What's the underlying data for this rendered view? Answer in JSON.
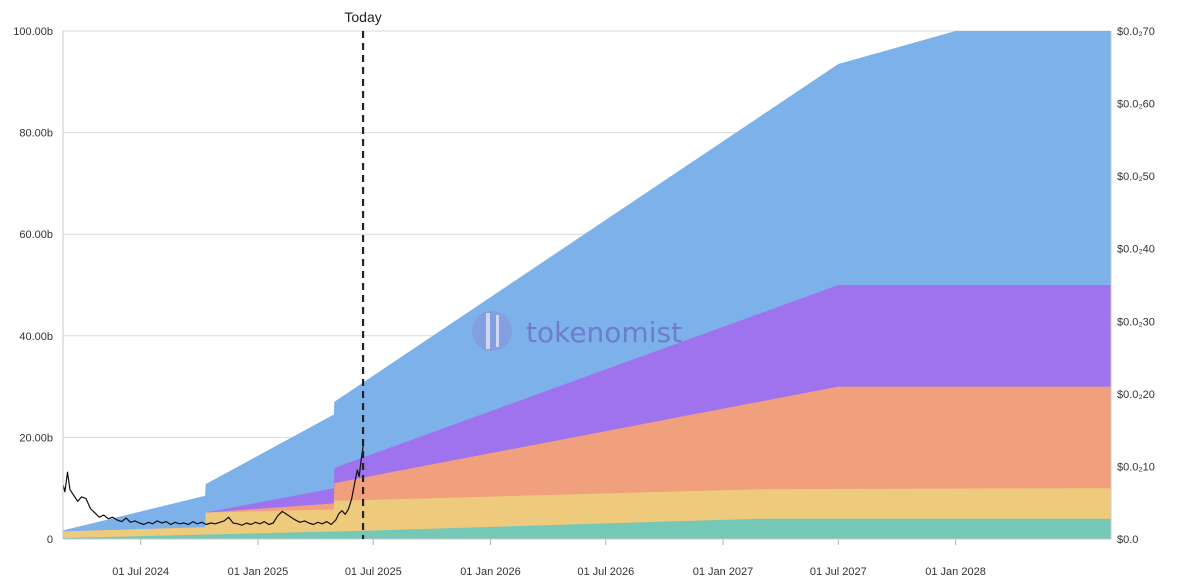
{
  "chart_data": {
    "type": "area",
    "x_axis": {
      "type": "date",
      "range": [
        "2024-03-01",
        "2028-09-01"
      ],
      "ticks": [
        {
          "date": "2024-07-01",
          "label": "01 Jul 2024"
        },
        {
          "date": "2025-01-01",
          "label": "01 Jan 2025"
        },
        {
          "date": "2025-07-01",
          "label": "01 Jul 2025"
        },
        {
          "date": "2026-01-01",
          "label": "01 Jan 2026"
        },
        {
          "date": "2026-07-01",
          "label": "01 Jul 2026"
        },
        {
          "date": "2027-01-01",
          "label": "01 Jan 2027"
        },
        {
          "date": "2027-07-01",
          "label": "01 Jul 2027"
        },
        {
          "date": "2028-01-01",
          "label": "01 Jan 2028"
        }
      ]
    },
    "y_axis_left": {
      "range": [
        0,
        100
      ],
      "ticks": [
        {
          "value": 0,
          "label": "0"
        },
        {
          "value": 20,
          "label": "20.00b"
        },
        {
          "value": 40,
          "label": "40.00b"
        },
        {
          "value": 60,
          "label": "60.00b"
        },
        {
          "value": 80,
          "label": "80.00b"
        },
        {
          "value": 100,
          "label": "100.00b"
        }
      ]
    },
    "y_axis_right": {
      "ticks": [
        {
          "value": 0,
          "label": "$0.0"
        },
        {
          "value": 1e-06,
          "label": "$0.0₂10"
        },
        {
          "value": 2e-06,
          "label": "$0.0₂20"
        },
        {
          "value": 3e-06,
          "label": "$0.0₂30"
        },
        {
          "value": 4e-06,
          "label": "$0.0₂40"
        },
        {
          "value": 5e-06,
          "label": "$0.0₂50"
        },
        {
          "value": 6e-06,
          "label": "$0.0₂60"
        },
        {
          "value": 7e-06,
          "label": "$0.0₂70"
        }
      ]
    },
    "today": {
      "date": "2025-06-15",
      "label": "Today"
    },
    "grid": true,
    "watermark": "tokenomist",
    "series": [
      {
        "color": "#76c8b6",
        "points": [
          [
            "2024-03-01",
            0.2
          ],
          [
            "2025-06-10",
            1.6
          ],
          [
            "2027-03-01",
            4.0
          ],
          [
            "2028-08-01",
            4.0
          ]
        ]
      },
      {
        "color": "#eecb7c",
        "points": [
          [
            "2024-03-01",
            1.5
          ],
          [
            "2024-10-10",
            2.3
          ],
          [
            "2024-10-11",
            5.2
          ],
          [
            "2025-04-30",
            5.8
          ],
          [
            "2025-05-01",
            7.5
          ],
          [
            "2027-03-01",
            9.8
          ],
          [
            "2028-08-01",
            10.0
          ]
        ]
      },
      {
        "color": "#f0a07d",
        "points": [
          [
            "2024-03-01",
            1.5
          ],
          [
            "2024-10-10",
            2.3
          ],
          [
            "2024-10-11",
            5.2
          ],
          [
            "2025-04-30",
            7.0
          ],
          [
            "2025-05-01",
            11.0
          ],
          [
            "2027-07-01",
            30.0
          ],
          [
            "2028-08-01",
            30.0
          ]
        ]
      },
      {
        "color": "#9f72ee",
        "points": [
          [
            "2024-03-01",
            1.5
          ],
          [
            "2024-10-10",
            2.3
          ],
          [
            "2024-10-11",
            5.2
          ],
          [
            "2025-04-30",
            10.0
          ],
          [
            "2025-05-01",
            14.0
          ],
          [
            "2027-07-01",
            50.0
          ],
          [
            "2028-08-01",
            50.0
          ]
        ]
      },
      {
        "color": "#7db1ea",
        "points": [
          [
            "2024-03-01",
            1.7
          ],
          [
            "2024-10-10",
            8.5
          ],
          [
            "2024-10-11",
            10.8
          ],
          [
            "2025-04-30",
            24.5
          ],
          [
            "2025-05-01",
            27.0
          ],
          [
            "2027-07-01",
            93.5
          ],
          [
            "2028-01-01",
            100.0
          ],
          [
            "2028-08-01",
            100.0
          ]
        ]
      }
    ],
    "price_series": {
      "color": "#111111",
      "points": [
        [
          "2024-03-01",
          7.5e-07
        ],
        [
          "2024-03-04",
          6.5e-07
        ],
        [
          "2024-03-08",
          9.2e-07
        ],
        [
          "2024-03-12",
          6.8e-07
        ],
        [
          "2024-03-18",
          6e-07
        ],
        [
          "2024-03-24",
          5.2e-07
        ],
        [
          "2024-03-30",
          5.8e-07
        ],
        [
          "2024-04-06",
          5.6e-07
        ],
        [
          "2024-04-13",
          4.2e-07
        ],
        [
          "2024-04-20",
          3.6e-07
        ],
        [
          "2024-04-27",
          3e-07
        ],
        [
          "2024-05-04",
          3.3e-07
        ],
        [
          "2024-05-11",
          2.8e-07
        ],
        [
          "2024-05-18",
          3e-07
        ],
        [
          "2024-05-25",
          2.6e-07
        ],
        [
          "2024-06-01",
          2.4e-07
        ],
        [
          "2024-06-08",
          2.9e-07
        ],
        [
          "2024-06-15",
          2.3e-07
        ],
        [
          "2024-06-22",
          2.5e-07
        ],
        [
          "2024-06-29",
          2.2e-07
        ],
        [
          "2024-07-06",
          2e-07
        ],
        [
          "2024-07-13",
          2.3e-07
        ],
        [
          "2024-07-20",
          2.1e-07
        ],
        [
          "2024-07-27",
          2.5e-07
        ],
        [
          "2024-08-03",
          2.2e-07
        ],
        [
          "2024-08-10",
          2.4e-07
        ],
        [
          "2024-08-17",
          2e-07
        ],
        [
          "2024-08-24",
          2.3e-07
        ],
        [
          "2024-08-31",
          2.1e-07
        ],
        [
          "2024-09-07",
          2.2e-07
        ],
        [
          "2024-09-14",
          2e-07
        ],
        [
          "2024-09-21",
          2.4e-07
        ],
        [
          "2024-09-28",
          2.1e-07
        ],
        [
          "2024-10-05",
          2.3e-07
        ],
        [
          "2024-10-12",
          2e-07
        ],
        [
          "2024-10-19",
          2.2e-07
        ],
        [
          "2024-10-26",
          2.1e-07
        ],
        [
          "2024-11-02",
          2.3e-07
        ],
        [
          "2024-11-09",
          2.5e-07
        ],
        [
          "2024-11-16",
          3e-07
        ],
        [
          "2024-11-23",
          2.2e-07
        ],
        [
          "2024-11-30",
          2.1e-07
        ],
        [
          "2024-12-07",
          1.9e-07
        ],
        [
          "2024-12-14",
          2.2e-07
        ],
        [
          "2024-12-21",
          2e-07
        ],
        [
          "2024-12-28",
          2.3e-07
        ],
        [
          "2025-01-04",
          2.1e-07
        ],
        [
          "2025-01-11",
          2.4e-07
        ],
        [
          "2025-01-18",
          2e-07
        ],
        [
          "2025-01-25",
          2.2e-07
        ],
        [
          "2025-02-01",
          3.2e-07
        ],
        [
          "2025-02-08",
          3.8e-07
        ],
        [
          "2025-02-15",
          3.4e-07
        ],
        [
          "2025-02-22",
          3e-07
        ],
        [
          "2025-03-01",
          2.6e-07
        ],
        [
          "2025-03-08",
          2.3e-07
        ],
        [
          "2025-03-15",
          2.5e-07
        ],
        [
          "2025-03-22",
          2.2e-07
        ],
        [
          "2025-03-29",
          2e-07
        ],
        [
          "2025-04-05",
          2.3e-07
        ],
        [
          "2025-04-12",
          2.1e-07
        ],
        [
          "2025-04-19",
          2.4e-07
        ],
        [
          "2025-04-26",
          2e-07
        ],
        [
          "2025-05-03",
          2.6e-07
        ],
        [
          "2025-05-08",
          3.5e-07
        ],
        [
          "2025-05-13",
          3.9e-07
        ],
        [
          "2025-05-18",
          3.4e-07
        ],
        [
          "2025-05-23",
          4.1e-07
        ],
        [
          "2025-05-28",
          5.5e-07
        ],
        [
          "2025-06-02",
          7.8e-07
        ],
        [
          "2025-06-06",
          9.5e-07
        ],
        [
          "2025-06-09",
          8.6e-07
        ],
        [
          "2025-06-11",
          1.02e-06
        ],
        [
          "2025-06-13",
          1.15e-06
        ],
        [
          "2025-06-15",
          1.28e-06
        ]
      ]
    }
  }
}
